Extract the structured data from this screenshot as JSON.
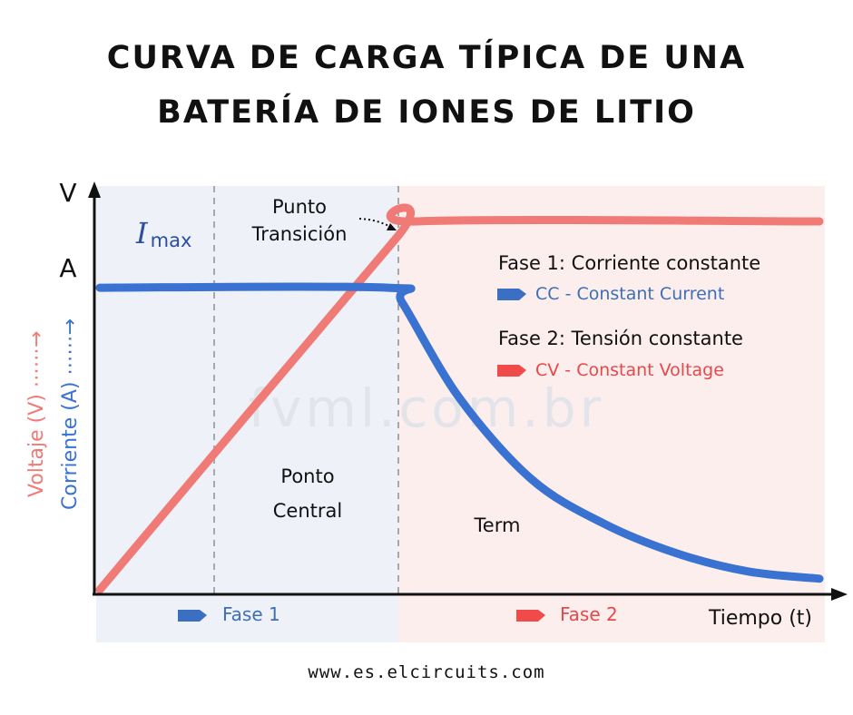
{
  "title_line1": "CURVA DE CARGA TÍPICA DE UNA",
  "title_line2": "BATERÍA DE IONES DE LITIO",
  "footer": "www.es.elcircuits.com",
  "watermark": "fvml.com.br",
  "chart_data": {
    "type": "line",
    "axis_labels": {
      "y_top": "V",
      "y_mid": "A",
      "y_voltage": "Voltaje (V) ⋯⋯→",
      "y_current": "Corriente (A) ⋯⋯→",
      "x": "Tiempo (t)"
    },
    "current_max_label": {
      "symbol": "I",
      "subscript": "max"
    },
    "annotations": {
      "transition": [
        "Punto",
        "Transición"
      ],
      "center": [
        "Ponto",
        "Central"
      ],
      "term": "Term"
    },
    "phase_legend": {
      "phase1_title": "Fase 1: Corriente constante",
      "phase1_sub": "CC - Constant Current",
      "phase2_title": "Fase 2: Tensión constante",
      "phase2_sub": "CV - Constant Voltage"
    },
    "phase_labels": {
      "phase1": "Fase 1",
      "phase2": "Fase 2"
    },
    "colors": {
      "voltage": "#f07a76",
      "current": "#3a72d2",
      "phase1_bg": "#eef1f8",
      "phase2_bg": "#fdeeee",
      "phase1_marker": "#3a6fc4",
      "phase2_marker": "#f04a4a",
      "phase1_text": "#3d6fb5",
      "phase2_text": "#e8484a",
      "grid": "#a8a8a8"
    },
    "series": [
      {
        "name": "Voltaje (V)",
        "points": [
          [
            0,
            0
          ],
          [
            0.41,
            0.95
          ],
          [
            0.44,
            1.0
          ],
          [
            1.0,
            1.0
          ]
        ]
      },
      {
        "name": "Corriente (A)",
        "points": [
          [
            0,
            0.82
          ],
          [
            0.4,
            0.82
          ],
          [
            0.42,
            0.78
          ],
          [
            0.5,
            0.52
          ],
          [
            0.6,
            0.3
          ],
          [
            0.7,
            0.18
          ],
          [
            0.8,
            0.1
          ],
          [
            0.9,
            0.05
          ],
          [
            1.0,
            0.03
          ]
        ]
      }
    ]
  }
}
